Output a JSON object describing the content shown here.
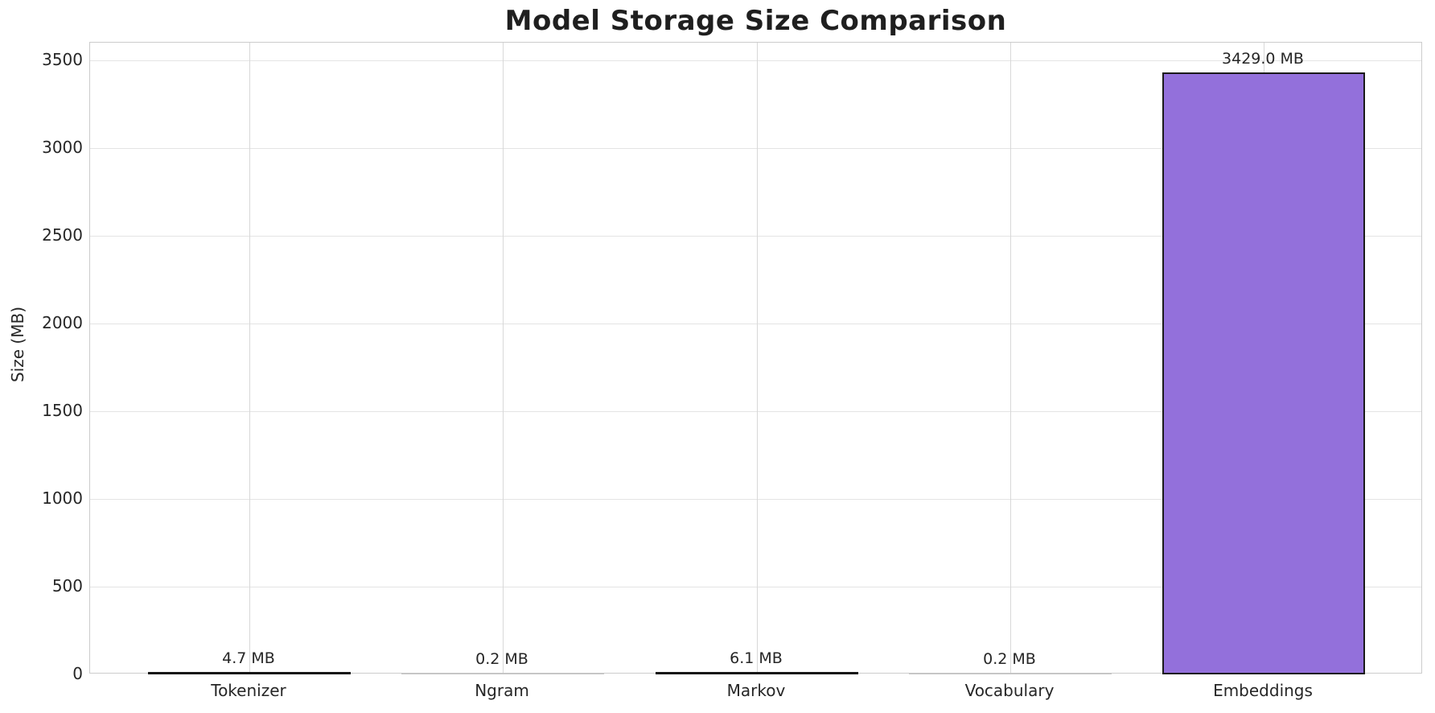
{
  "chart_data": {
    "type": "bar",
    "title": "Model Storage Size Comparison",
    "xlabel": "",
    "ylabel": "Size (MB)",
    "categories": [
      "Tokenizer",
      "Ngram",
      "Markov",
      "Vocabulary",
      "Embeddings"
    ],
    "values": [
      4.7,
      0.2,
      6.1,
      0.2,
      3429.0
    ],
    "value_labels": [
      "4.7 MB",
      "0.2 MB",
      "6.1 MB",
      "0.2 MB",
      "3429.0 MB"
    ],
    "yticks": [
      0,
      500,
      1000,
      1500,
      2000,
      2500,
      3000,
      3500
    ],
    "ylim": [
      0,
      3600
    ],
    "grid": true,
    "legend_position": "none",
    "colors": {
      "bar_fill": "#9370db",
      "bar_edge": "#1a1a1a",
      "tiny_bar_dark": "#161616",
      "tiny_bar_faint": "#c6c6c6",
      "grid_h": "#e4e4e4",
      "grid_v": "#d8d8d8",
      "spine": "#cccccc",
      "text": "#262626",
      "title_text": "#1f1f1f"
    }
  }
}
